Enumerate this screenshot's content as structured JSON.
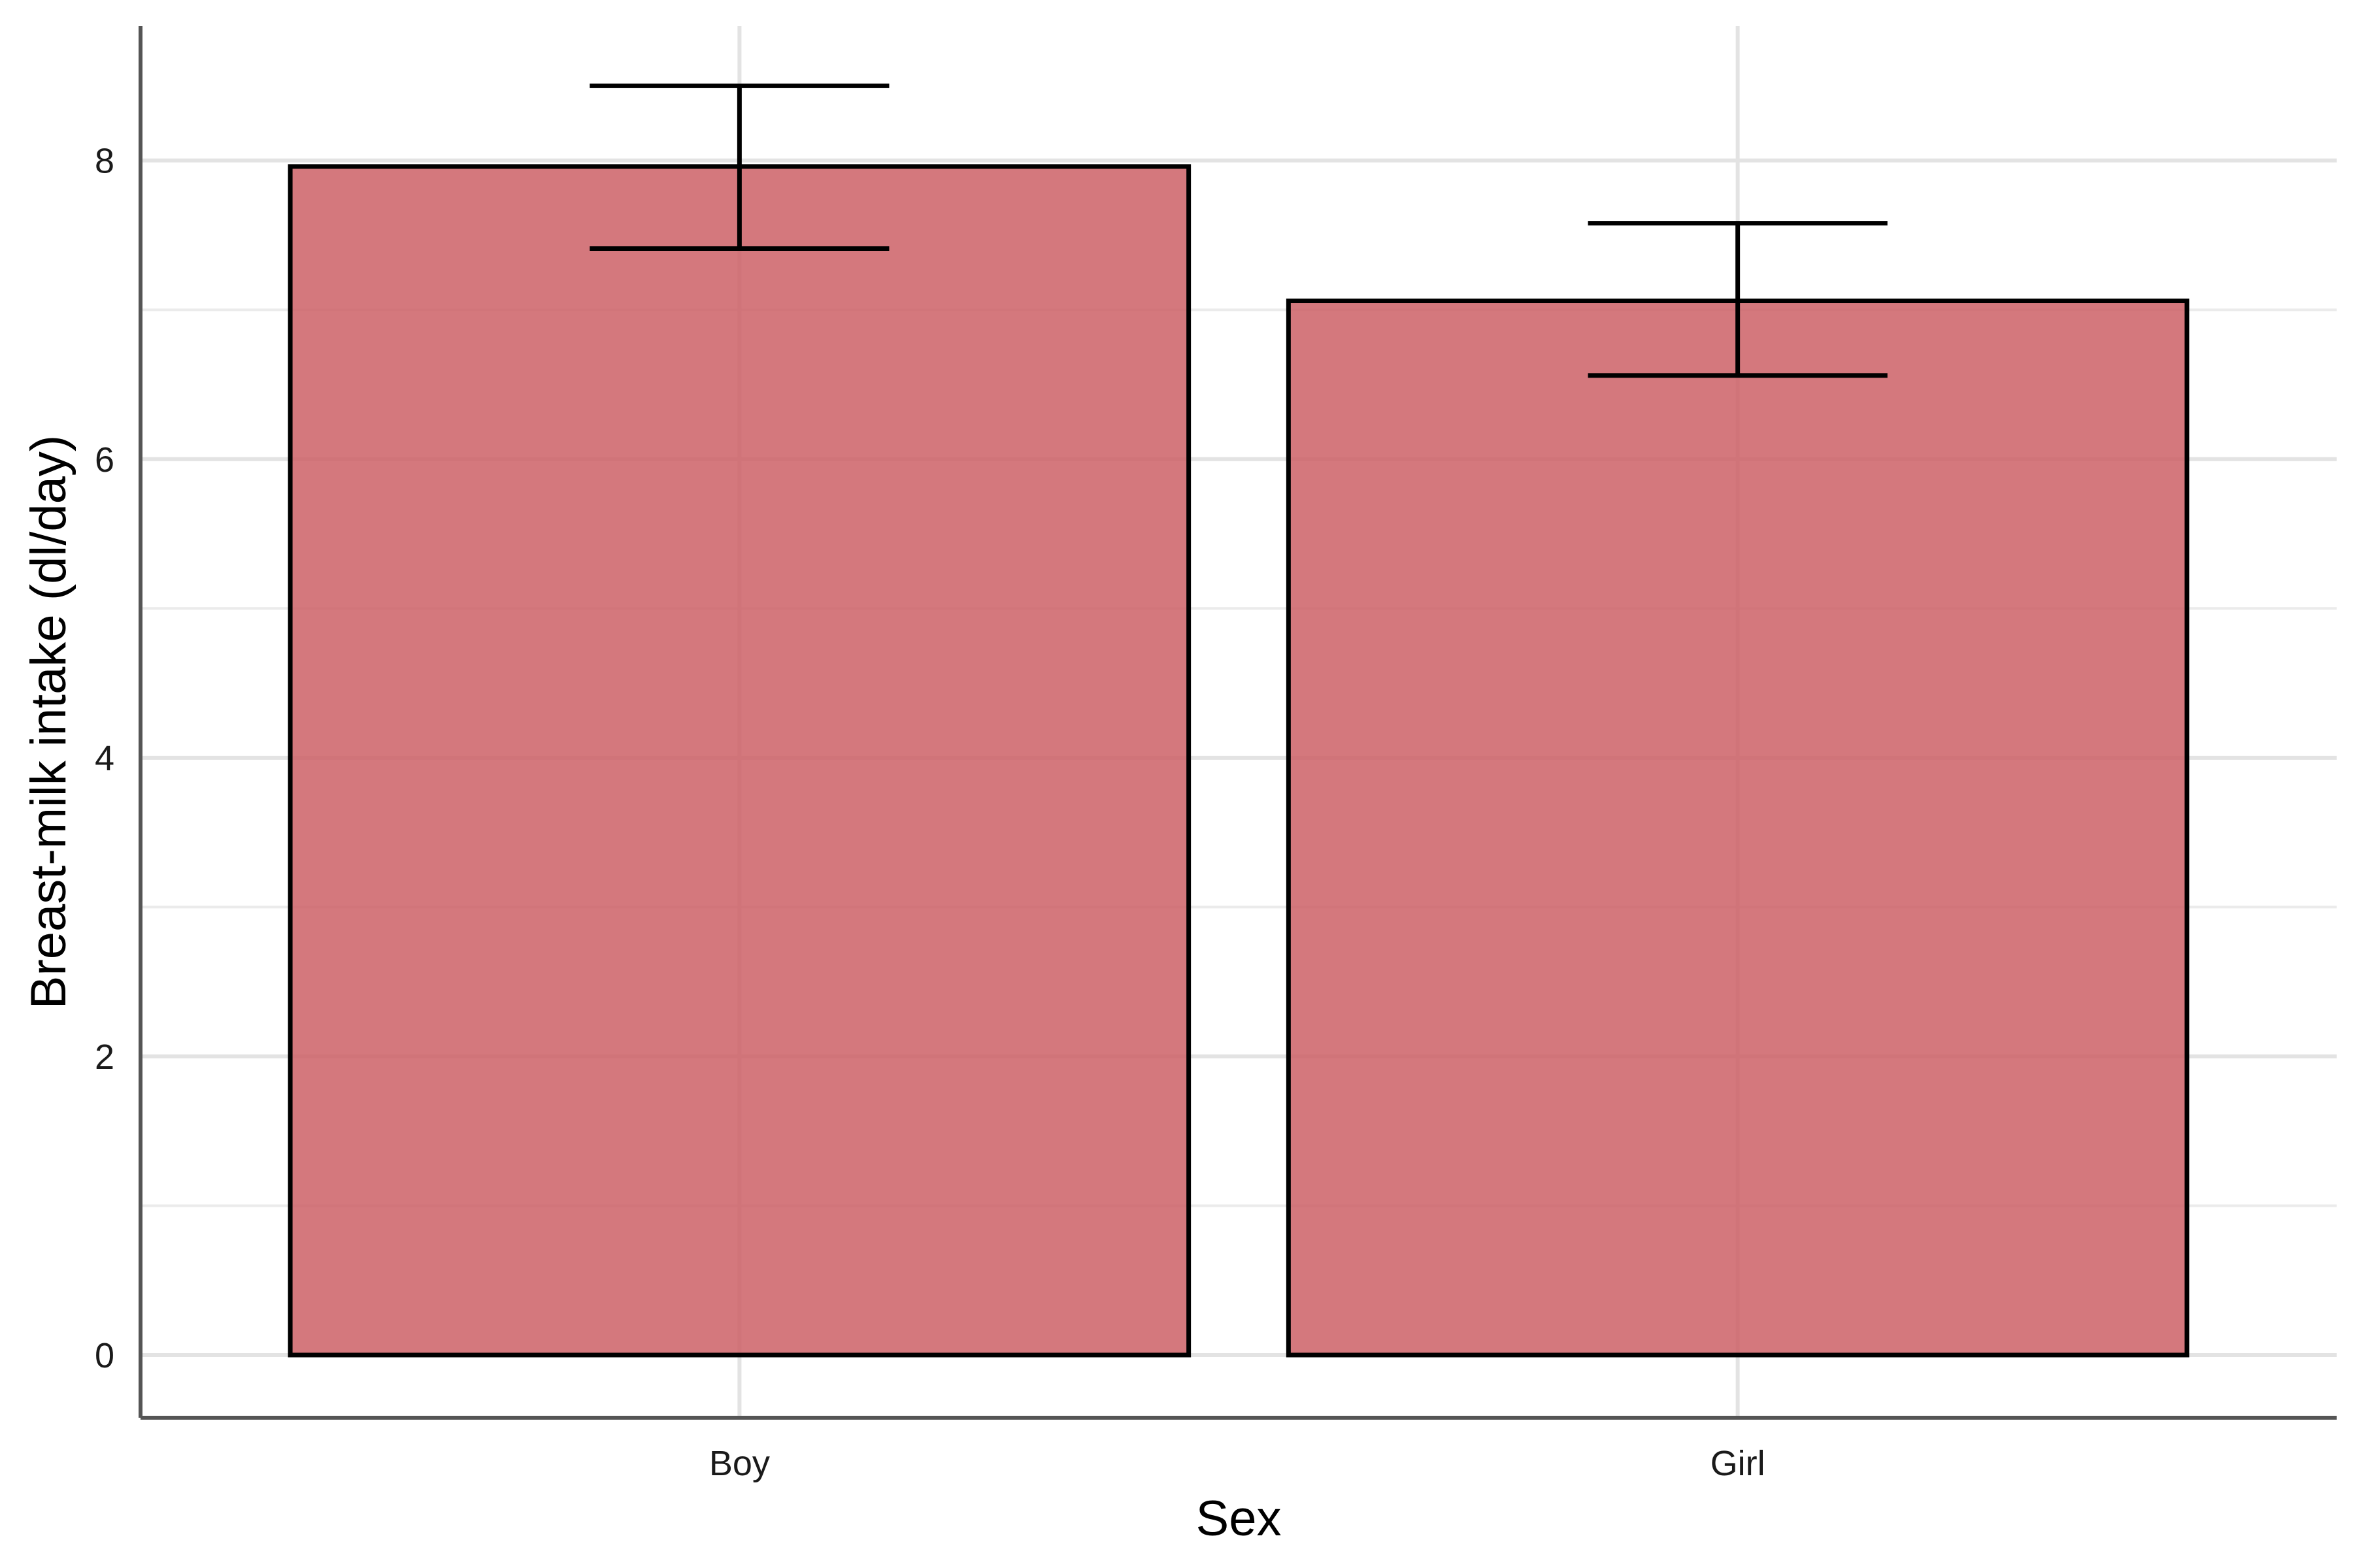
{
  "chart_data": {
    "type": "bar",
    "title": "",
    "xlabel": "Sex",
    "ylabel": "Breast-milk intake (dl/day)",
    "categories": [
      "Boy",
      "Girl"
    ],
    "values": [
      7.96,
      7.06
    ],
    "error_bars": {
      "lower": [
        7.41,
        6.56
      ],
      "upper": [
        8.5,
        7.58
      ]
    },
    "ylim": [
      -0.42,
      8.9
    ],
    "yticks": [
      0,
      2,
      4,
      6,
      8
    ],
    "ytick_labels": [
      "0",
      "2",
      "4",
      "6",
      "8"
    ],
    "grid": true,
    "bar_color": "#cc6066",
    "bar_outline": "#000000"
  }
}
